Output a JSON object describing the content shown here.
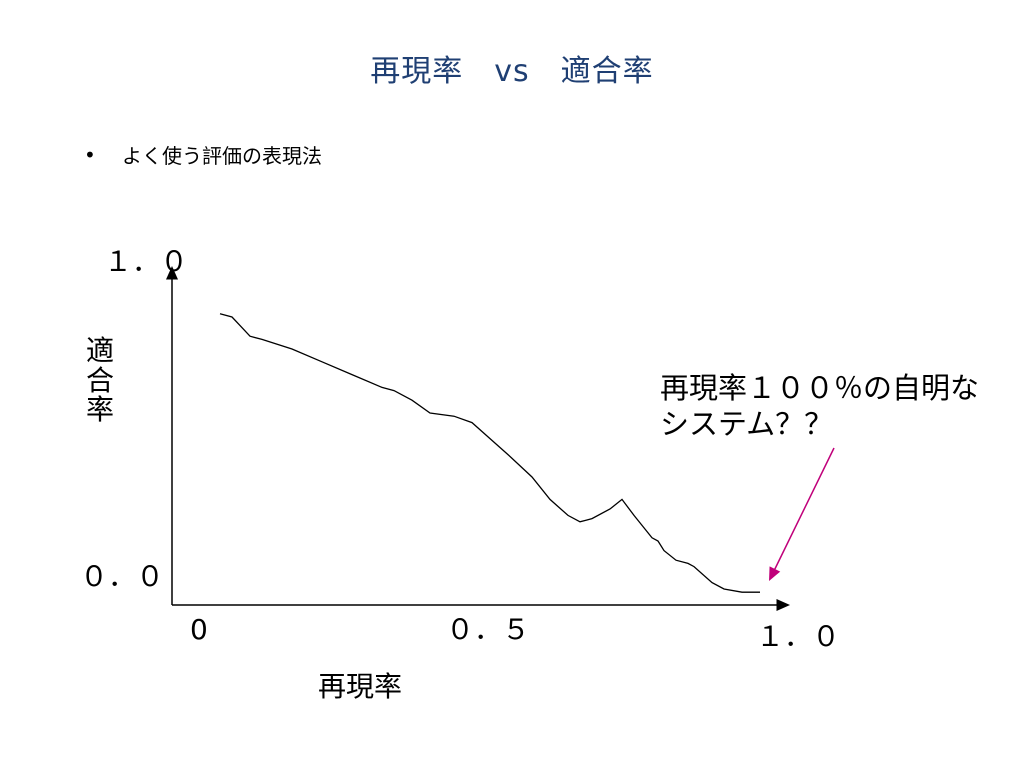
{
  "slide": {
    "title": "再現率　vs　適合率",
    "bullet": "よく使う評価の表現法"
  },
  "colors": {
    "title": "#1f3f73",
    "axis": "#000000",
    "curve": "#000000",
    "arrow": "#c0007a"
  },
  "chart_data": {
    "type": "line",
    "xlabel": "再現率",
    "ylabel": "適合率",
    "xlim": [
      0,
      1
    ],
    "ylim": [
      0,
      1
    ],
    "x_tick_labels": {
      "start": "0",
      "mid": "０．５",
      "end": "１．０"
    },
    "y_tick_labels": {
      "top": "１．０",
      "bottom": "０．０"
    },
    "series": [
      {
        "x": [
          0.08,
          0.1,
          0.115,
          0.13,
          0.15,
          0.2,
          0.25,
          0.3,
          0.35,
          0.37,
          0.4,
          0.43,
          0.47,
          0.5,
          0.53,
          0.56,
          0.6,
          0.63,
          0.66,
          0.68,
          0.69,
          0.7,
          0.73,
          0.75,
          0.77,
          0.8,
          0.81,
          0.82,
          0.84,
          0.86,
          0.87,
          0.9,
          0.92,
          0.95,
          0.98
        ],
        "y": [
          0.91,
          0.9,
          0.87,
          0.84,
          0.83,
          0.8,
          0.76,
          0.72,
          0.68,
          0.67,
          0.64,
          0.6,
          0.59,
          0.57,
          0.52,
          0.47,
          0.4,
          0.33,
          0.28,
          0.26,
          0.265,
          0.27,
          0.3,
          0.33,
          0.28,
          0.21,
          0.2,
          0.17,
          0.14,
          0.13,
          0.12,
          0.07,
          0.05,
          0.04,
          0.04
        ]
      }
    ],
    "annotation": {
      "text": "再現率１００％の自明なシステム？？",
      "points_to": {
        "x": 1.0,
        "y": 0.07
      }
    }
  }
}
